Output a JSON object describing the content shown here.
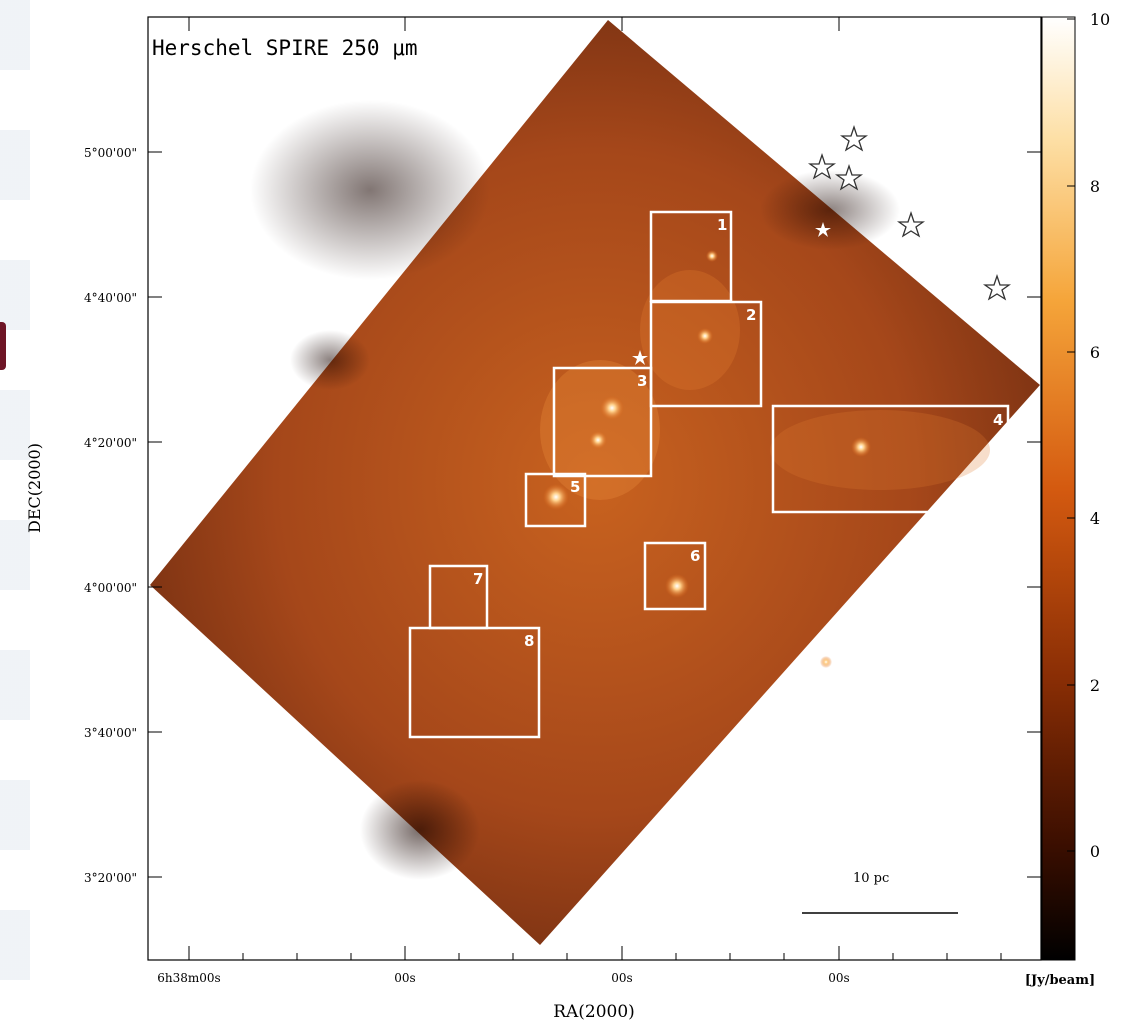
{
  "figure": {
    "title_text": "Herschel SPIRE 250 μm",
    "xlabel": "RA(2000)",
    "ylabel": "DEC(2000)",
    "unit_label": "[Jy/beam]",
    "scalebar_label": "10 pc",
    "colormap_colors": [
      "#000000",
      "#3a0e00",
      "#8a2e05",
      "#d45a10",
      "#f5a53a",
      "#fddfa5",
      "#ffffff"
    ],
    "map_color": "#b3501a",
    "box_color": "#ffffff"
  },
  "axes": {
    "y_ticks": [
      "5°00'00\"",
      "4°40'00\"",
      "4°20'00\"",
      "4°00'00\"",
      "3°40'00\"",
      "3°20'00\""
    ],
    "x_ticks": [
      "6h38m00s",
      "00s",
      "00s",
      "00s"
    ]
  },
  "colorbar": {
    "range": [
      -1.3,
      10
    ],
    "ticks": [
      "10",
      "8",
      "6",
      "4",
      "2",
      "0"
    ]
  },
  "regions": [
    "1",
    "2",
    "3",
    "4",
    "5",
    "6",
    "7",
    "8"
  ]
}
